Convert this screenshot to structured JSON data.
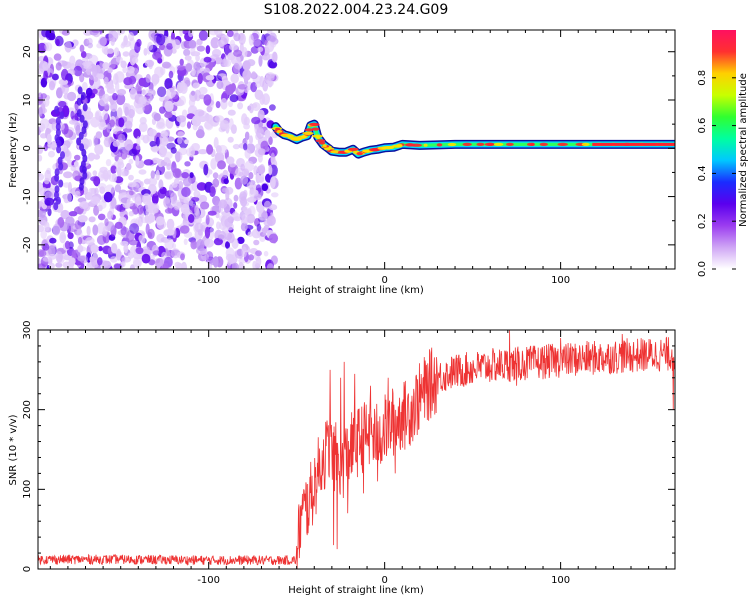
{
  "title": "S108.2022.004.23.24.G09",
  "chart_data": [
    {
      "type": "heatmap",
      "id": "spectrogram",
      "xlabel": "Height of straight line (km)",
      "ylabel": "Frequency (Hz)",
      "xlim": [
        -197,
        165
      ],
      "ylim": [
        -25,
        24.5
      ],
      "xticks": [
        -100,
        0,
        100
      ],
      "yticks": [
        -20,
        -10,
        0,
        10,
        20
      ],
      "noise_region": [
        -197,
        -62
      ],
      "signal_track": [
        [
          -62,
          4.5
        ],
        [
          -60,
          3.5
        ],
        [
          -57,
          2.8
        ],
        [
          -54,
          2.5
        ],
        [
          -50,
          1.8
        ],
        [
          -47,
          2.3
        ],
        [
          -44,
          2.6
        ],
        [
          -42,
          4.7
        ],
        [
          -40,
          5.0
        ],
        [
          -38,
          2.3
        ],
        [
          -35,
          0.8
        ],
        [
          -32,
          0.0
        ],
        [
          -30,
          -0.6
        ],
        [
          -26,
          -0.8
        ],
        [
          -22,
          -0.8
        ],
        [
          -18,
          -0.2
        ],
        [
          -15,
          -1.2
        ],
        [
          -12,
          -0.8
        ],
        [
          -8,
          -0.4
        ],
        [
          -4,
          -0.2
        ],
        [
          0,
          0.1
        ],
        [
          5,
          0.2
        ],
        [
          10,
          0.8
        ],
        [
          20,
          0.6
        ],
        [
          40,
          0.8
        ],
        [
          60,
          0.8
        ],
        [
          80,
          0.8
        ],
        [
          100,
          0.8
        ],
        [
          120,
          0.8
        ],
        [
          140,
          0.8
        ],
        [
          165,
          0.8
        ]
      ],
      "colorbar": {
        "label": "Normalized spectral amplitude",
        "ticks": [
          "0.0",
          "0.2",
          "0.4",
          "0.6",
          "0.8"
        ],
        "tick_values": [
          0.0,
          0.2,
          0.4,
          0.6,
          0.8
        ],
        "range": [
          0.0,
          1.0
        ],
        "colors": [
          "#ffffff",
          "#cfa5f5",
          "#9b3cf0",
          "#5a00ee",
          "#1a2cff",
          "#00c8ff",
          "#00ffa0",
          "#30ff30",
          "#c8ff00",
          "#ffd000",
          "#ff3030",
          "#ff1060"
        ]
      }
    },
    {
      "type": "line",
      "id": "snr",
      "xlabel": "Height of straight line (km)",
      "ylabel": "SNR (10 * v/v)",
      "xlim": [
        -197,
        165
      ],
      "ylim": [
        0,
        300
      ],
      "xticks": [
        -100,
        0,
        100
      ],
      "yticks": [
        0,
        100,
        200,
        300
      ],
      "color": "#ee3333",
      "baseline": [
        [
          -197,
          12
        ],
        [
          -150,
          12
        ],
        [
          -100,
          11
        ],
        [
          -64,
          11
        ],
        [
          -50,
          11
        ]
      ],
      "envelope": [
        [
          -50,
          11
        ],
        [
          -48,
          60
        ],
        [
          -45,
          75
        ],
        [
          -42,
          90
        ],
        [
          -38,
          120
        ],
        [
          -35,
          140
        ],
        [
          -32,
          150
        ],
        [
          -28,
          140
        ],
        [
          -24,
          130
        ],
        [
          -20,
          150
        ],
        [
          -15,
          160
        ],
        [
          -10,
          170
        ],
        [
          -5,
          165
        ],
        [
          0,
          175
        ],
        [
          5,
          185
        ],
        [
          10,
          190
        ],
        [
          15,
          200
        ],
        [
          20,
          215
        ],
        [
          25,
          230
        ],
        [
          30,
          240
        ],
        [
          40,
          248
        ],
        [
          60,
          255
        ],
        [
          80,
          258
        ],
        [
          100,
          262
        ],
        [
          120,
          265
        ],
        [
          140,
          268
        ],
        [
          165,
          270
        ]
      ],
      "spikes": [
        [
          -31,
          250
        ],
        [
          -29,
          30
        ],
        [
          -27,
          25
        ],
        [
          -25,
          240
        ],
        [
          -23,
          260
        ],
        [
          -21,
          70
        ],
        [
          -17,
          245
        ],
        [
          -12,
          95
        ],
        [
          -8,
          230
        ],
        [
          -4,
          110
        ],
        [
          2,
          240
        ],
        [
          6,
          120
        ],
        [
          10,
          210
        ],
        [
          71,
          300
        ],
        [
          75,
          230
        ],
        [
          100,
          290
        ],
        [
          135,
          295
        ],
        [
          160,
          290
        ],
        [
          164,
          200
        ]
      ],
      "noise_amplitude": 10
    }
  ]
}
